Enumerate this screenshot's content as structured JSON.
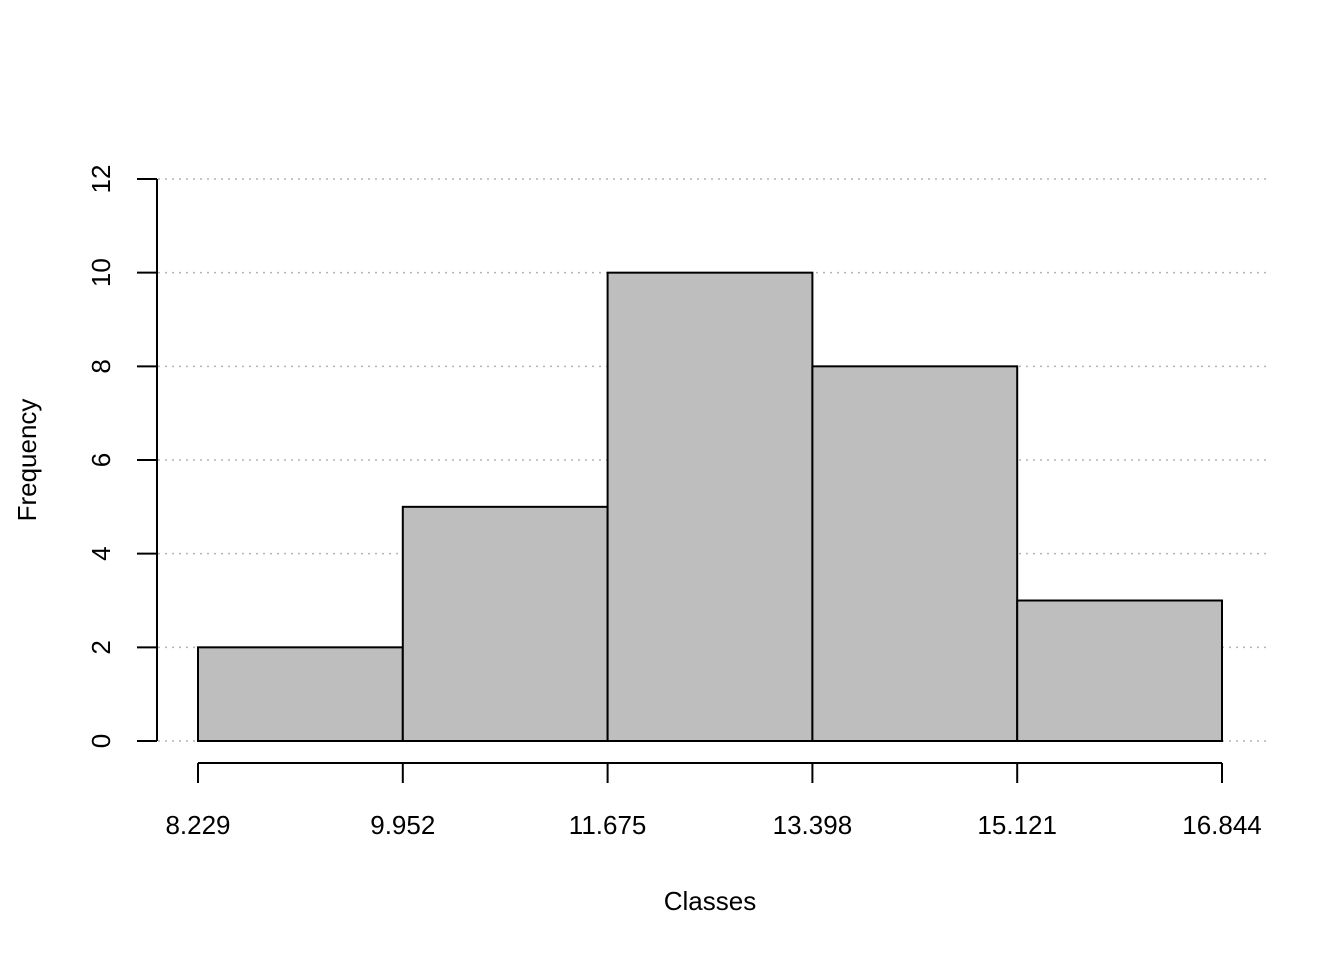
{
  "chart_data": {
    "type": "bar",
    "subtype": "histogram",
    "title": "",
    "xlabel": "Classes",
    "ylabel": "Frequency",
    "bin_edges": [
      8.229,
      9.952,
      11.675,
      13.398,
      15.121,
      16.844
    ],
    "x_tick_labels": [
      "8.229",
      "9.952",
      "11.675",
      "13.398",
      "15.121",
      "16.844"
    ],
    "values": [
      2,
      5,
      10,
      8,
      3
    ],
    "ylim": [
      0,
      12
    ],
    "y_ticks": [
      0,
      2,
      4,
      6,
      8,
      10,
      12
    ],
    "y_tick_labels": [
      "0",
      "2",
      "4",
      "6",
      "8",
      "10",
      "12"
    ],
    "grid": "horizontal dotted",
    "colors": {
      "bar_fill": "#bebebe",
      "bar_stroke": "#000000",
      "grid": "#b3b3b3"
    }
  }
}
